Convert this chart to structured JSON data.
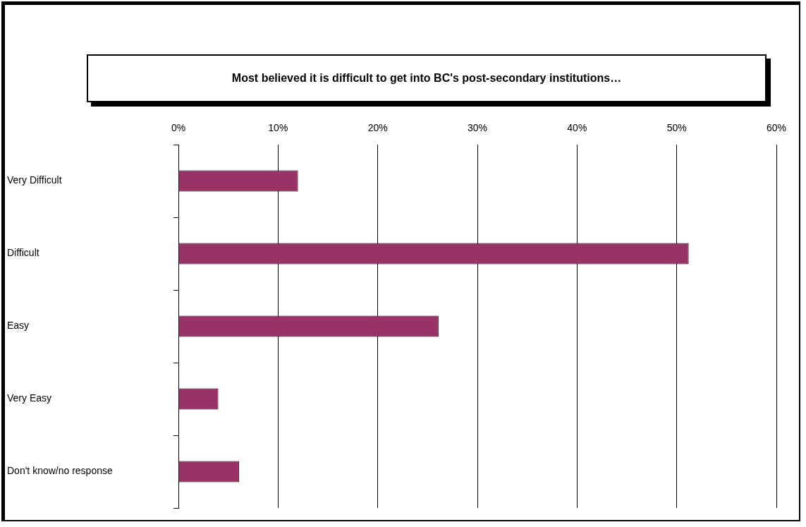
{
  "chart_data": {
    "type": "bar",
    "orientation": "horizontal",
    "title": "Most believed it is difficult to get into BC's post-secondary institutions…",
    "categories": [
      "Very Difficult",
      "Difficult",
      "Easy",
      "Very Easy",
      "Don't know/no response"
    ],
    "values": [
      12,
      51.2,
      26.1,
      4,
      6.1
    ],
    "color": "#993366",
    "xlim": [
      0,
      60
    ],
    "xticks": [
      {
        "value": 0,
        "label": "0%"
      },
      {
        "value": 10,
        "label": "10%"
      },
      {
        "value": 20,
        "label": "20%"
      },
      {
        "value": 30,
        "label": "30%"
      },
      {
        "value": 40,
        "label": "40%"
      },
      {
        "value": 50,
        "label": "50%"
      },
      {
        "value": 60,
        "label": "60%"
      }
    ],
    "grid": "x",
    "legend": false
  }
}
